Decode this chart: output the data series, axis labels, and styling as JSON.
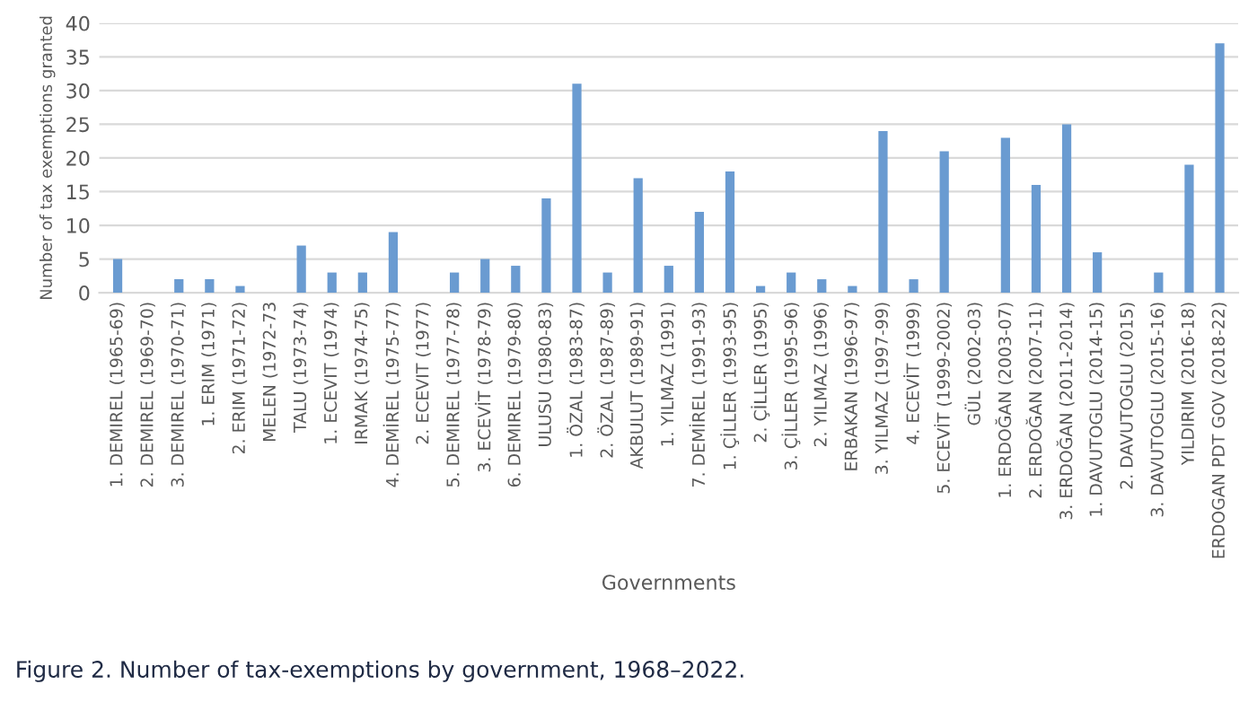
{
  "chart_data": {
    "type": "bar",
    "xlabel": "Governments",
    "ylabel": "Number of tax exemptions granted",
    "categories": [
      "1. DEMIREL (1965-69)",
      "2. DEMIREL (1969-70)",
      "3. DEMIREL (1970-71)",
      "1. ERIM (1971)",
      "2. ERIM (1971-72)",
      "MELEN (1972-73",
      "TALU (1973-74)",
      "1. ECEVIT (1974)",
      "IRMAK (1974-75)",
      "4. DEMİREL (1975-77)",
      "2. ECEVIT (1977)",
      "5. DEMIREL (1977-78)",
      "3. ECEVİT (1978-79)",
      "6. DEMIREL (1979-80)",
      "ULUSU (1980-83)",
      "1. ÖZAL (1983-87)",
      "2. ÖZAL (1987-89)",
      "AKBULUT (1989-91)",
      "1. YILMAZ (1991)",
      "7. DEMİREL (1991-93)",
      "1. ÇİLLER (1993-95)",
      "2. ÇİLLER (1995)",
      "3. ÇİLLER (1995-96)",
      "2. YILMAZ (1996)",
      "ERBAKAN (1996-97)",
      "3. YILMAZ (1997-99)",
      "4. ECEVİT (1999)",
      "5. ECEVİT (1999-2002)",
      "GÜL (2002-03)",
      "1. ERDOĞAN (2003-07)",
      "2. ERDOĞAN (2007-11)",
      "3. ERDOĞAN (2011-2014)",
      "1. DAVUTOGLU (2014-15)",
      "2. DAVUTOGLU (2015)",
      "3. DAVUTOGLU (2015-16)",
      "YILDIRIM (2016-18)",
      "ERDOGAN PDT GOV (2018-22)"
    ],
    "values": [
      5,
      0,
      2,
      2,
      1,
      0,
      7,
      3,
      3,
      9,
      0,
      3,
      5,
      4,
      14,
      31,
      3,
      17,
      4,
      12,
      18,
      1,
      3,
      2,
      1,
      24,
      2,
      21,
      0,
      23,
      16,
      25,
      6,
      0,
      3,
      19,
      37
    ],
    "color": "#6a9bd1",
    "ylim": [
      0,
      40
    ],
    "yticks": [
      0,
      5,
      10,
      15,
      20,
      25,
      30,
      35,
      40
    ],
    "grid": "y",
    "annotations": [
      "Figure 2. Number of tax-exemptions by government, 1968–2022."
    ]
  }
}
